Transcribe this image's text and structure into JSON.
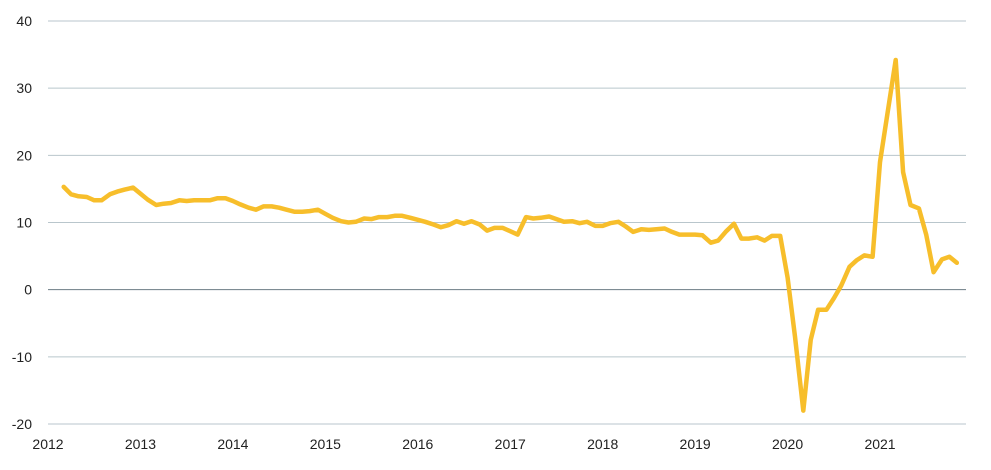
{
  "chart_data": {
    "type": "line",
    "title": "",
    "xlabel": "",
    "ylabel": "",
    "xlim": [
      2012.0,
      2021.93
    ],
    "ylim": [
      -20,
      40
    ],
    "grid": true,
    "legend": "none",
    "x_ticks": [
      "2012",
      "2013",
      "2014",
      "2015",
      "2016",
      "2017",
      "2018",
      "2019",
      "2020",
      "2021"
    ],
    "y_ticks": [
      "40",
      "30",
      "20",
      "10",
      "0",
      "-10",
      "-20"
    ],
    "y_tick_values": [
      40,
      30,
      20,
      10,
      0,
      -10,
      -20
    ],
    "colors": {
      "line": "#F7BE2B",
      "grid": "#B9C6CC",
      "zero_line": "#6B7B84"
    },
    "series": [
      {
        "points": [
          [
            2012.17,
            15.3
          ],
          [
            2012.25,
            14.2
          ],
          [
            2012.33,
            13.9
          ],
          [
            2012.42,
            13.8
          ],
          [
            2012.5,
            13.3
          ],
          [
            2012.58,
            13.3
          ],
          [
            2012.67,
            14.2
          ],
          [
            2012.75,
            14.6
          ],
          [
            2012.83,
            14.9
          ],
          [
            2012.92,
            15.2
          ],
          [
            2013.0,
            14.3
          ],
          [
            2013.08,
            13.4
          ],
          [
            2013.17,
            12.6
          ],
          [
            2013.25,
            12.8
          ],
          [
            2013.33,
            12.9
          ],
          [
            2013.42,
            13.3
          ],
          [
            2013.5,
            13.2
          ],
          [
            2013.58,
            13.3
          ],
          [
            2013.67,
            13.3
          ],
          [
            2013.75,
            13.3
          ],
          [
            2013.83,
            13.6
          ],
          [
            2013.92,
            13.6
          ],
          [
            2014.0,
            13.2
          ],
          [
            2014.08,
            12.7
          ],
          [
            2014.17,
            12.2
          ],
          [
            2014.25,
            11.9
          ],
          [
            2014.33,
            12.4
          ],
          [
            2014.42,
            12.4
          ],
          [
            2014.5,
            12.2
          ],
          [
            2014.58,
            11.9
          ],
          [
            2014.67,
            11.6
          ],
          [
            2014.75,
            11.6
          ],
          [
            2014.83,
            11.7
          ],
          [
            2014.92,
            11.9
          ],
          [
            2015.0,
            11.3
          ],
          [
            2015.08,
            10.7
          ],
          [
            2015.17,
            10.2
          ],
          [
            2015.25,
            10.0
          ],
          [
            2015.33,
            10.1
          ],
          [
            2015.42,
            10.6
          ],
          [
            2015.5,
            10.5
          ],
          [
            2015.58,
            10.8
          ],
          [
            2015.67,
            10.8
          ],
          [
            2015.75,
            11.0
          ],
          [
            2015.83,
            11.0
          ],
          [
            2015.92,
            10.7
          ],
          [
            2016.0,
            10.4
          ],
          [
            2016.08,
            10.1
          ],
          [
            2016.17,
            9.7
          ],
          [
            2016.25,
            9.3
          ],
          [
            2016.33,
            9.6
          ],
          [
            2016.42,
            10.2
          ],
          [
            2016.5,
            9.8
          ],
          [
            2016.58,
            10.2
          ],
          [
            2016.67,
            9.7
          ],
          [
            2016.75,
            8.8
          ],
          [
            2016.83,
            9.2
          ],
          [
            2016.92,
            9.2
          ],
          [
            2017.0,
            8.7
          ],
          [
            2017.08,
            8.2
          ],
          [
            2017.17,
            10.8
          ],
          [
            2017.25,
            10.6
          ],
          [
            2017.33,
            10.7
          ],
          [
            2017.42,
            10.9
          ],
          [
            2017.5,
            10.5
          ],
          [
            2017.58,
            10.1
          ],
          [
            2017.67,
            10.2
          ],
          [
            2017.75,
            9.9
          ],
          [
            2017.83,
            10.1
          ],
          [
            2017.92,
            9.5
          ],
          [
            2018.0,
            9.5
          ],
          [
            2018.08,
            9.9
          ],
          [
            2018.17,
            10.1
          ],
          [
            2018.25,
            9.4
          ],
          [
            2018.33,
            8.6
          ],
          [
            2018.42,
            9.0
          ],
          [
            2018.5,
            8.9
          ],
          [
            2018.58,
            9.0
          ],
          [
            2018.67,
            9.1
          ],
          [
            2018.75,
            8.6
          ],
          [
            2018.83,
            8.2
          ],
          [
            2018.92,
            8.2
          ],
          [
            2019.0,
            8.2
          ],
          [
            2019.08,
            8.1
          ],
          [
            2019.17,
            7.0
          ],
          [
            2019.25,
            7.3
          ],
          [
            2019.33,
            8.6
          ],
          [
            2019.42,
            9.8
          ],
          [
            2019.5,
            7.6
          ],
          [
            2019.58,
            7.6
          ],
          [
            2019.67,
            7.8
          ],
          [
            2019.75,
            7.3
          ],
          [
            2019.83,
            8.0
          ],
          [
            2019.92,
            8.0
          ],
          [
            2020.0,
            1.8
          ],
          [
            2020.08,
            -7.0
          ],
          [
            2020.17,
            -18.0
          ],
          [
            2020.25,
            -7.5
          ],
          [
            2020.33,
            -3.0
          ],
          [
            2020.42,
            -3.0
          ],
          [
            2020.5,
            -1.3
          ],
          [
            2020.58,
            0.6
          ],
          [
            2020.67,
            3.4
          ],
          [
            2020.75,
            4.4
          ],
          [
            2020.83,
            5.1
          ],
          [
            2020.92,
            4.9
          ],
          [
            2021.0,
            19.0
          ],
          [
            2021.17,
            34.2
          ],
          [
            2021.25,
            17.5
          ],
          [
            2021.33,
            12.6
          ],
          [
            2021.42,
            12.1
          ],
          [
            2021.5,
            8.2
          ],
          [
            2021.58,
            2.6
          ],
          [
            2021.67,
            4.5
          ],
          [
            2021.75,
            4.9
          ],
          [
            2021.83,
            4.0
          ]
        ]
      }
    ]
  }
}
